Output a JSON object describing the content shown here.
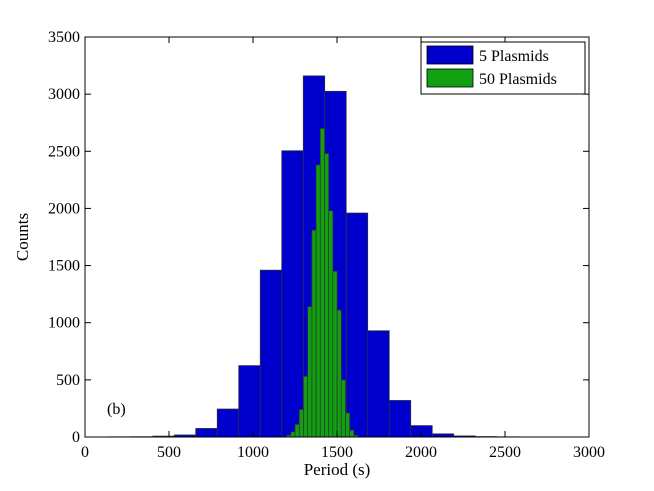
{
  "chart_data": {
    "type": "bar",
    "xlabel": "Period (s)",
    "ylabel": "Counts",
    "xlim": [
      0,
      3000
    ],
    "ylim": [
      0,
      3500
    ],
    "xticks": [
      0,
      500,
      1000,
      1500,
      2000,
      2500,
      3000
    ],
    "yticks": [
      0,
      500,
      1000,
      1500,
      2000,
      2500,
      3000,
      3500
    ],
    "grid": false,
    "legend_position": "top-right",
    "annotation": "(b)",
    "series": [
      {
        "name": "5 Plasmids",
        "color": "#0000cc",
        "bin_width": 128,
        "bin_centers": [
          211,
          339,
          467,
          595,
          723,
          851,
          979,
          1107,
          1235,
          1363,
          1491,
          1619,
          1747,
          1875,
          2003,
          2131,
          2259,
          2387,
          2515,
          2643,
          2771
        ],
        "values": [
          2,
          3,
          8,
          18,
          75,
          245,
          625,
          1460,
          2505,
          3160,
          3025,
          1960,
          930,
          320,
          100,
          28,
          10,
          4,
          2,
          1,
          1
        ]
      },
      {
        "name": "50 Plasmids",
        "color": "#11a011",
        "bin_width": 25,
        "bin_centers": [
          1188,
          1213,
          1238,
          1263,
          1288,
          1313,
          1338,
          1363,
          1388,
          1413,
          1438,
          1463,
          1488,
          1513,
          1538,
          1563,
          1588,
          1613
        ],
        "values": [
          5,
          15,
          45,
          110,
          240,
          530,
          1140,
          1810,
          2380,
          2700,
          2480,
          1980,
          1450,
          1110,
          500,
          210,
          60,
          15
        ]
      }
    ]
  }
}
